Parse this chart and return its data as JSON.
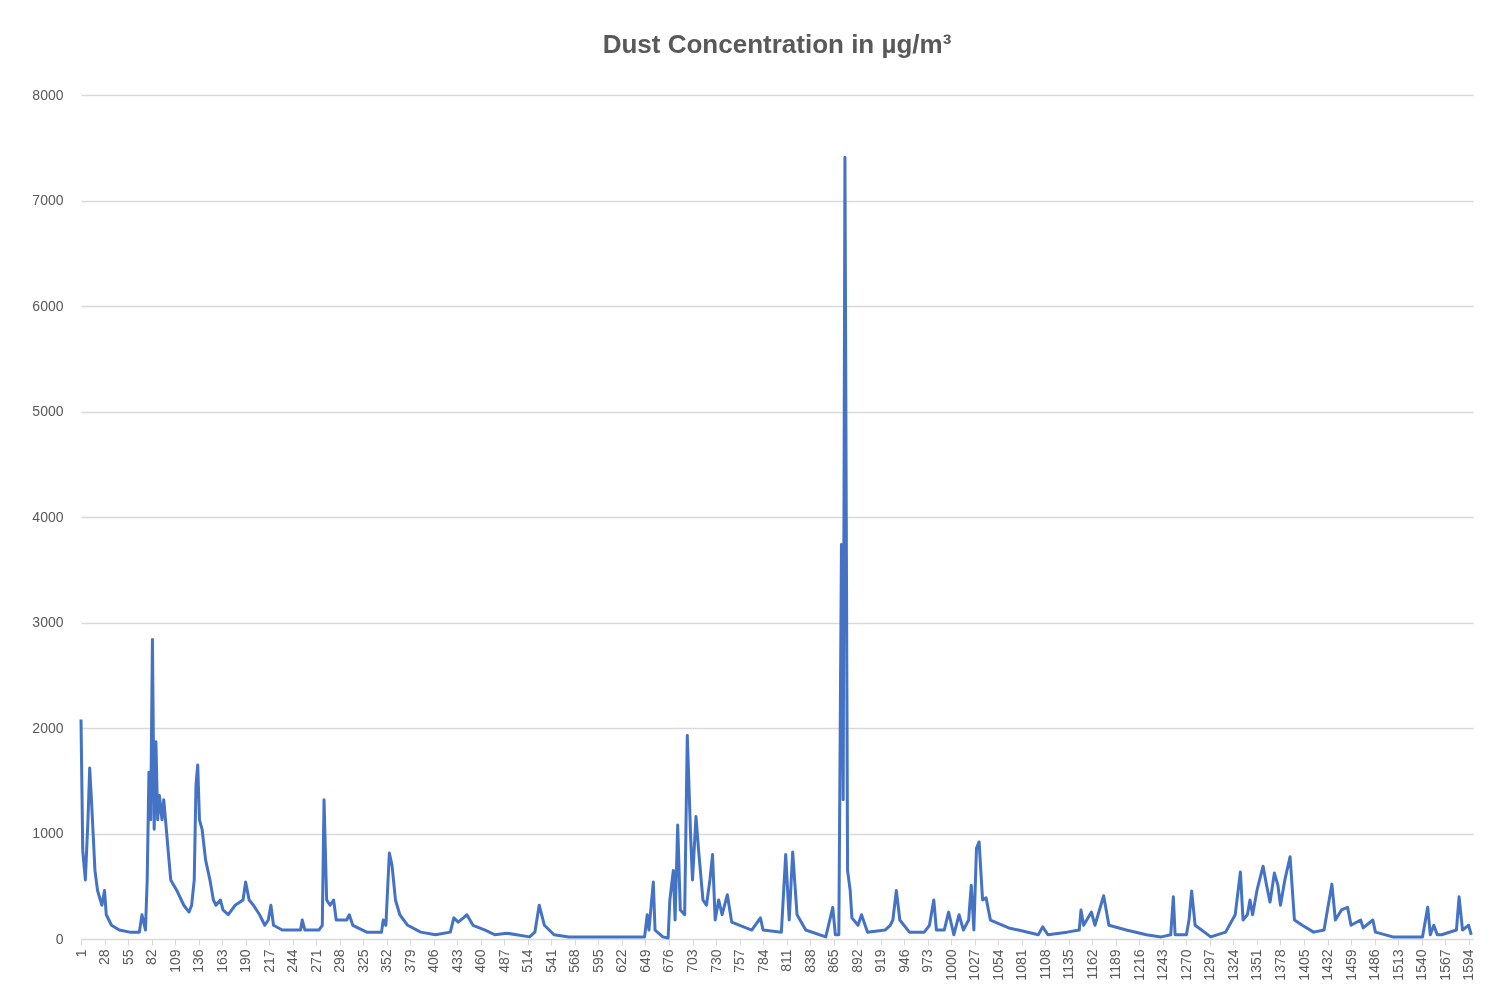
{
  "chart_data": {
    "type": "line",
    "title": "Dust Concentration in µg/m³",
    "color": "#4472c4",
    "grid": "y",
    "xlim": [
      1,
      1599
    ],
    "ylim": [
      0,
      8000
    ],
    "yticks": [
      0,
      1000,
      2000,
      3000,
      4000,
      5000,
      6000,
      7000,
      8000
    ],
    "xticks": [
      1,
      28,
      55,
      82,
      109,
      136,
      163,
      190,
      217,
      244,
      271,
      298,
      325,
      352,
      379,
      406,
      433,
      460,
      487,
      514,
      541,
      568,
      595,
      622,
      649,
      676,
      703,
      730,
      757,
      784,
      811,
      838,
      865,
      892,
      919,
      946,
      973,
      1000,
      1027,
      1054,
      1081,
      1108,
      1135,
      1162,
      1189,
      1216,
      1243,
      1270,
      1297,
      1324,
      1351,
      1378,
      1405,
      1432,
      1459,
      1486,
      1513,
      1540,
      1567,
      1594
    ],
    "x": [
      1,
      3,
      6,
      9,
      11,
      13,
      17,
      20,
      25,
      28,
      30,
      36,
      45,
      57,
      68,
      71,
      75,
      77,
      79,
      81,
      83,
      85,
      87,
      89,
      91,
      94,
      96,
      100,
      104,
      111,
      119,
      125,
      128,
      131,
      133,
      135,
      137,
      140,
      144,
      149,
      153,
      156,
      161,
      164,
      170,
      178,
      187,
      190,
      194,
      199,
      206,
      212,
      216,
      219,
      222,
      232,
      253,
      255,
      258,
      274,
      278,
      280,
      283,
      287,
      291,
      294,
      306,
      309,
      313,
      329,
      346,
      348,
      351,
      355,
      358,
      362,
      367,
      376,
      391,
      408,
      425,
      429,
      434,
      440,
      444,
      451,
      465,
      476,
      490,
      516,
      522,
      527,
      533,
      544,
      561,
      635,
      648,
      651,
      653,
      658,
      660,
      669,
      675,
      677,
      681,
      683,
      686,
      689,
      694,
      697,
      701,
      703,
      707,
      710,
      715,
      719,
      723,
      726,
      729,
      733,
      737,
      743,
      748,
      771,
      781,
      784,
      805,
      810,
      814,
      818,
      823,
      833,
      856,
      864,
      867,
      871,
      874,
      876,
      878,
      881,
      884,
      886,
      893,
      897,
      904,
      924,
      930,
      933,
      937,
      941,
      952,
      969,
      975,
      980,
      983,
      992,
      997,
      1003,
      1009,
      1014,
      1020,
      1023,
      1026,
      1029,
      1032,
      1036,
      1040,
      1045,
      1066,
      1077,
      1100,
      1105,
      1111,
      1133,
      1147,
      1149,
      1152,
      1161,
      1165,
      1175,
      1181,
      1201,
      1224,
      1241,
      1252,
      1255,
      1257,
      1270,
      1273,
      1276,
      1280,
      1298,
      1315,
      1326,
      1332,
      1335,
      1340,
      1343,
      1346,
      1351,
      1358,
      1362,
      1366,
      1371,
      1375,
      1378,
      1383,
      1389,
      1394,
      1403,
      1416,
      1428,
      1437,
      1441,
      1448,
      1455,
      1459,
      1470,
      1473,
      1484,
      1487,
      1507,
      1541,
      1547,
      1550,
      1554,
      1558,
      1563,
      1580,
      1583,
      1587,
      1594,
      1597
    ],
    "values": [
      2080,
      840,
      560,
      1130,
      1620,
      1320,
      650,
      460,
      320,
      460,
      230,
      130,
      85,
      65,
      65,
      230,
      85,
      560,
      1580,
      1130,
      2840,
      1040,
      1870,
      1130,
      1360,
      1130,
      1320,
      940,
      560,
      460,
      320,
      255,
      320,
      560,
      1460,
      1650,
      1130,
      1040,
      750,
      560,
      370,
      320,
      370,
      275,
      230,
      320,
      370,
      540,
      370,
      320,
      230,
      130,
      180,
      320,
      130,
      85,
      85,
      180,
      85,
      85,
      130,
      1320,
      370,
      320,
      370,
      180,
      180,
      230,
      130,
      65,
      65,
      180,
      130,
      815,
      700,
      370,
      230,
      130,
      65,
      40,
      65,
      200,
      160,
      200,
      230,
      130,
      85,
      40,
      55,
      20,
      65,
      320,
      130,
      40,
      20,
      20,
      20,
      230,
      85,
      540,
      85,
      20,
      10,
      370,
      650,
      180,
      1080,
      275,
      230,
      1930,
      940,
      560,
      1160,
      840,
      370,
      320,
      560,
      800,
      180,
      370,
      230,
      420,
      160,
      85,
      200,
      85,
      65,
      800,
      180,
      825,
      230,
      85,
      20,
      300,
      40,
      40,
      3740,
      1320,
      7410,
      650,
      460,
      200,
      130,
      230,
      65,
      85,
      130,
      180,
      460,
      180,
      65,
      65,
      130,
      370,
      85,
      85,
      255,
      40,
      230,
      85,
      180,
      510,
      85,
      860,
      920,
      370,
      390,
      180,
      105,
      85,
      40,
      115,
      40,
      65,
      85,
      275,
      130,
      255,
      130,
      410,
      130,
      85,
      40,
      20,
      40,
      400,
      40,
      40,
      180,
      455,
      130,
      20,
      65,
      230,
      635,
      180,
      230,
      370,
      230,
      460,
      690,
      510,
      350,
      625,
      510,
      320,
      560,
      780,
      180,
      130,
      65,
      85,
      520,
      180,
      275,
      300,
      130,
      180,
      105,
      180,
      65,
      20,
      20,
      300,
      40,
      130,
      40,
      40,
      85,
      400,
      85,
      130,
      40
    ]
  }
}
